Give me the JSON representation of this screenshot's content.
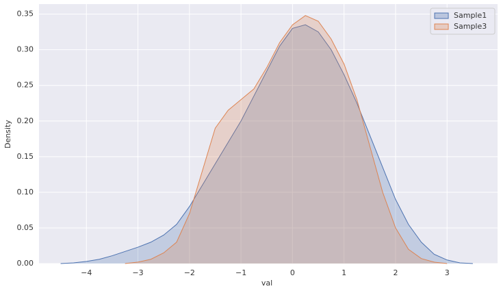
{
  "chart_data": {
    "type": "area",
    "x_label": "val",
    "y_label": "Density",
    "x": [
      -4.5,
      -4.25,
      -4,
      -3.75,
      -3.5,
      -3.25,
      -3,
      -2.75,
      -2.5,
      -2.25,
      -2,
      -1.75,
      -1.5,
      -1.25,
      -1,
      -0.75,
      -0.5,
      -0.25,
      0,
      0.25,
      0.5,
      0.75,
      1,
      1.25,
      1.5,
      1.75,
      2,
      2.25,
      2.5,
      2.75,
      3,
      3.25,
      3.5
    ],
    "series": [
      {
        "name": "Sample1",
        "color": "#4c72b0",
        "values": [
          0,
          0.001,
          0.003,
          0.006,
          0.011,
          0.017,
          0.023,
          0.03,
          0.04,
          0.055,
          0.08,
          0.11,
          0.14,
          0.17,
          0.2,
          0.235,
          0.27,
          0.305,
          0.33,
          0.335,
          0.325,
          0.3,
          0.265,
          0.225,
          0.18,
          0.135,
          0.09,
          0.055,
          0.03,
          0.013,
          0.005,
          0.001,
          0
        ]
      },
      {
        "name": "Sample3",
        "color": "#dd8452",
        "values": [
          null,
          null,
          null,
          null,
          null,
          0,
          0.002,
          0.006,
          0.015,
          0.03,
          0.07,
          0.13,
          0.19,
          0.215,
          0.23,
          0.245,
          0.275,
          0.31,
          0.335,
          0.348,
          0.34,
          0.315,
          0.28,
          0.23,
          0.165,
          0.1,
          0.05,
          0.02,
          0.007,
          0.002,
          0,
          null,
          null
        ]
      }
    ],
    "xlim": [
      -4.92,
      3.98
    ],
    "xticks": [
      {
        "value": -4,
        "label": "−4"
      },
      {
        "value": -3,
        "label": "−3"
      },
      {
        "value": -2,
        "label": "−2"
      },
      {
        "value": -1,
        "label": "−1"
      },
      0,
      1,
      2,
      3
    ],
    "ylim": [
      0,
      0.364
    ],
    "yticks": [
      {
        "value": 0,
        "label": "0.00"
      },
      {
        "value": 0.05,
        "label": "0.05"
      },
      {
        "value": 0.1,
        "label": "0.10"
      },
      {
        "value": 0.15,
        "label": "0.15"
      },
      {
        "value": 0.2,
        "label": "0.20"
      },
      {
        "value": 0.25,
        "label": "0.25"
      },
      {
        "value": 0.3,
        "label": "0.30"
      },
      {
        "value": 0.35,
        "label": "0.35"
      }
    ],
    "grid": true,
    "legend": "upper right"
  }
}
